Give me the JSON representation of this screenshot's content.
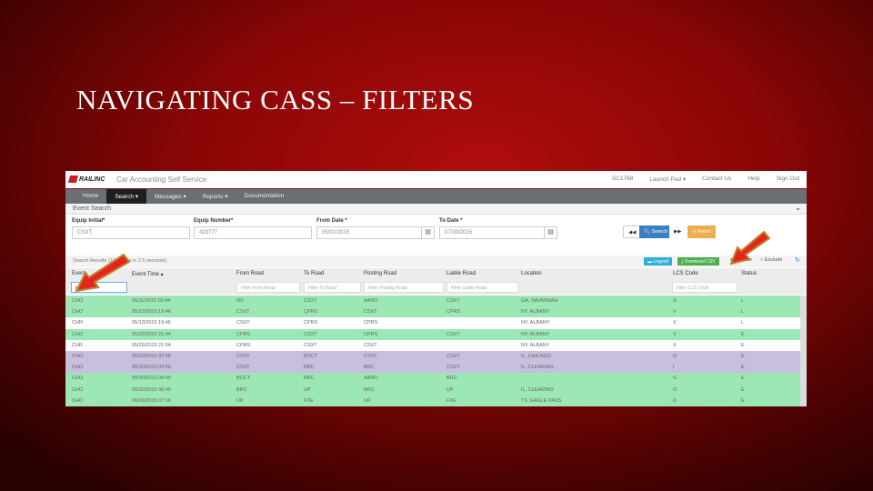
{
  "slide_title": "NAVIGATING CASS – FILTERS",
  "brand": {
    "logo": "RAILINC",
    "app_name": "Car Accounting Self Service"
  },
  "topnav": [
    "SC1768",
    "Launch Pad ▾",
    "Contact Us",
    "Help",
    "Sign Out"
  ],
  "nav": [
    {
      "label": "Home"
    },
    {
      "label": "Search ▾",
      "active": true
    },
    {
      "label": "Messages ▾"
    },
    {
      "label": "Reports ▾"
    },
    {
      "label": "Documentation"
    }
  ],
  "panel_title": "Event Search",
  "form": {
    "equip_initial": {
      "label": "Equip Initial*",
      "value": "CSXT"
    },
    "equip_number": {
      "label": "Equip Number*",
      "value": "423777"
    },
    "from_date": {
      "label": "From Date *",
      "value": "05/01/2015"
    },
    "to_date": {
      "label": "To Date *",
      "value": "07/30/2015"
    }
  },
  "buttons": {
    "prev": "◀◀",
    "search": "Search",
    "next": "▶▶",
    "reset": "Reset",
    "legend": "Legend",
    "download": "Download CSV",
    "include": "Include",
    "exclude": "Exclude"
  },
  "results_text": "Search Results (10 results in 2.5 seconds)",
  "columns": [
    "Event",
    "Event Time ▴",
    "From Road",
    "To Road",
    "Posting Road",
    "Liable Road",
    "Location",
    "LCS Code",
    "Status"
  ],
  "filters": {
    "event": "lc",
    "from_road": "Filter From Road",
    "to_road": "Filter To Road",
    "posting_road": "Filter Posting Road",
    "liable_road": "Filter Liable Road",
    "lcs_code": "Filter LCS Code"
  },
  "colors": {
    "green_row": "#9be8b4",
    "purple_row": "#c9bedf",
    "search_btn": "#3a7fc4",
    "reset_btn": "#efae4e",
    "download_btn": "#4cae4c",
    "legend_btn": "#31b0d5",
    "annotation_arrow": "#e8231c"
  },
  "rows": [
    {
      "c": "g",
      "cells": [
        "CHO",
        "05/11/2015 05:44",
        "NS",
        "CSXT",
        "AARO",
        "CSXT",
        "GA, SAVANNAH",
        "G",
        "L"
      ]
    },
    {
      "c": "g",
      "cells": [
        "CHO",
        "05/13/2015 19:46",
        "CSXT",
        "CPRS",
        "CSXT",
        "CPRS",
        "NY, ALBANY",
        "V",
        "L"
      ]
    },
    {
      "c": "w",
      "cells": [
        "CHR",
        "05/13/2015 19:46",
        "CSXT",
        "CPRS",
        "CPRS",
        "",
        "NY, ALBANY",
        "X",
        "L"
      ]
    },
    {
      "c": "g",
      "cells": [
        "CHO",
        "05/26/2015 21:44",
        "CPRS",
        "CSXT",
        "CPRS",
        "CSXT",
        "NY, ALBANY",
        "V",
        "E"
      ]
    },
    {
      "c": "w",
      "cells": [
        "CHR",
        "05/26/2015 21:54",
        "CPRS",
        "CSXT",
        "CSXT",
        "",
        "NY, ALBANY",
        "X",
        "E"
      ]
    },
    {
      "c": "p",
      "cells": [
        "CHO",
        "05/30/2015 02:56",
        "CSXT",
        "BOCT",
        "CSXT",
        "CSXT",
        "IL, CHICAGO",
        "O",
        "E"
      ]
    },
    {
      "c": "p",
      "cells": [
        "CHO",
        "05/30/2015 04:50",
        "CSXT",
        "BRC",
        "BRC",
        "CSXT",
        "IL, CLEARING",
        "I",
        "E"
      ]
    },
    {
      "c": "g",
      "cells": [
        "CHO",
        "05/30/2015 08:40",
        "BOCT",
        "BRC",
        "AARO",
        "BRC",
        "",
        "G",
        "E"
      ]
    },
    {
      "c": "g",
      "cells": [
        "CHO",
        "05/30/2015 08:49",
        "BRC",
        "UP",
        "BRC",
        "UP",
        "IL, CLEARING",
        "O",
        "E"
      ]
    },
    {
      "c": "g",
      "cells": [
        "CHO",
        "06/06/2015 07:16",
        "UP",
        "FXE",
        "UP",
        "FXE",
        "TX, EAGLE PASS",
        "D",
        "E"
      ]
    }
  ]
}
